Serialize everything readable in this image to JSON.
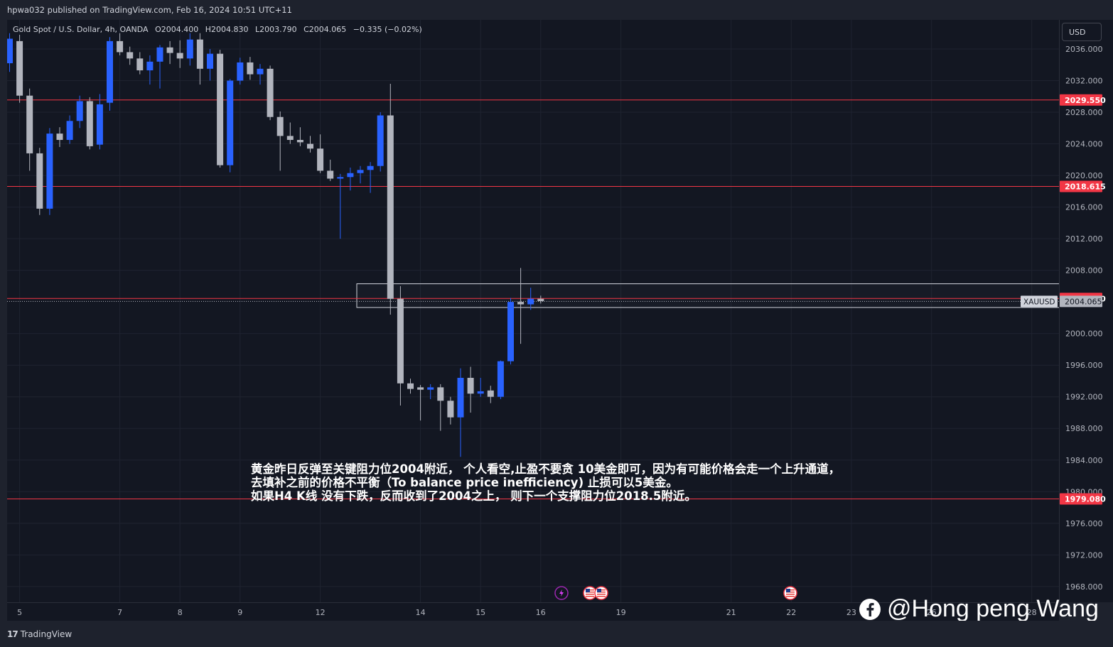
{
  "header": {
    "publisher_text": "hpwa032 published on TradingView.com, Feb 16, 2024 10:51 UTC+11"
  },
  "legend": {
    "symbol": "Gold Spot / U.S. Dollar, 4h, OANDA",
    "open": "O2004.400",
    "high": "H2004.830",
    "low": "L2003.790",
    "close": "C2004.065",
    "change": "−0.335 (−0.02%)"
  },
  "currency": "USD",
  "footer": {
    "brand": "TradingView",
    "logo_icon": "tradingview-logo-icon"
  },
  "annotation": {
    "line1": "黄金昨日反弹至关键阻力位2004附近， 个人看空,止盈不要贪 10美金即可，因为有可能价格会走一个上升通道，",
    "line2": "去填补之前的价格不平衡（To balance price inefficiency) 止损可以5美金。",
    "line3": "如果H4 K线 没有下跌，反而收到了2004之上， 则下一个支撑阻力位2018.5附近。"
  },
  "watermark": {
    "text": "@Hong peng Wang",
    "icon": "facebook-icon"
  },
  "event_icons": [
    "lightning-icon",
    "us-flag-icon",
    "us-flag-icon",
    "us-flag-icon"
  ],
  "colors": {
    "up": "#2962ff",
    "down": "#b2b5be",
    "level_line": "#f23645",
    "background": "#131722"
  },
  "chart_data": {
    "type": "candlestick",
    "symbol": "XAUUSD",
    "timeframe": "4h",
    "ylim": [
      1966,
      2038
    ],
    "y_ticks": [
      2036,
      2032,
      2028,
      2024,
      2020,
      2016,
      2012,
      2008,
      2000,
      1996,
      1992,
      1988,
      1984,
      1980,
      1976,
      1972,
      1968
    ],
    "y_tick_labels": [
      "2036.000",
      "2032.000",
      "2028.000",
      "2024.000",
      "2020.000",
      "2016.000",
      "2012.000",
      "2008.000",
      "2000.000",
      "1996.000",
      "1992.000",
      "1988.000",
      "1984.000",
      "1980.000",
      "1976.000",
      "1972.000",
      "1968.000"
    ],
    "x_labels": [
      {
        "label": "5",
        "bar": 1
      },
      {
        "label": "7",
        "bar": 11
      },
      {
        "label": "8",
        "bar": 17
      },
      {
        "label": "9",
        "bar": 23
      },
      {
        "label": "12",
        "bar": 31
      },
      {
        "label": "14",
        "bar": 41
      },
      {
        "label": "15",
        "bar": 47
      },
      {
        "label": "16",
        "bar": 53
      },
      {
        "label": "19",
        "bar": 61
      },
      {
        "label": "21",
        "bar": 72
      },
      {
        "label": "22",
        "bar": 78
      },
      {
        "label": "23",
        "bar": 84
      },
      {
        "label": "26",
        "bar": 92
      },
      {
        "label": "28",
        "bar": 102
      }
    ],
    "candles": [
      {
        "o": 2034.2,
        "h": 2038.0,
        "l": 2033.1,
        "c": 2037.3
      },
      {
        "o": 2037.0,
        "h": 2037.8,
        "l": 2029.2,
        "c": 2030.1
      },
      {
        "o": 2030.1,
        "h": 2031.0,
        "l": 2020.6,
        "c": 2022.8
      },
      {
        "o": 2022.8,
        "h": 2023.5,
        "l": 2015.0,
        "c": 2015.8
      },
      {
        "o": 2015.8,
        "h": 2026.0,
        "l": 2015.0,
        "c": 2025.3
      },
      {
        "o": 2025.3,
        "h": 2026.1,
        "l": 2023.6,
        "c": 2024.5
      },
      {
        "o": 2024.5,
        "h": 2027.6,
        "l": 2024.0,
        "c": 2026.9
      },
      {
        "o": 2026.9,
        "h": 2030.1,
        "l": 2026.0,
        "c": 2029.4
      },
      {
        "o": 2029.4,
        "h": 2029.9,
        "l": 2023.3,
        "c": 2023.7
      },
      {
        "o": 2023.9,
        "h": 2030.3,
        "l": 2023.3,
        "c": 2029.0
      },
      {
        "o": 2029.2,
        "h": 2037.5,
        "l": 2028.2,
        "c": 2037.0
      },
      {
        "o": 2037.0,
        "h": 2038.0,
        "l": 2035.2,
        "c": 2035.6
      },
      {
        "o": 2035.6,
        "h": 2036.3,
        "l": 2034.0,
        "c": 2034.8
      },
      {
        "o": 2034.8,
        "h": 2035.6,
        "l": 2032.8,
        "c": 2033.3
      },
      {
        "o": 2033.3,
        "h": 2035.2,
        "l": 2031.5,
        "c": 2034.4
      },
      {
        "o": 2034.4,
        "h": 2036.5,
        "l": 2031.0,
        "c": 2036.2
      },
      {
        "o": 2036.2,
        "h": 2037.0,
        "l": 2034.1,
        "c": 2035.5
      },
      {
        "o": 2035.5,
        "h": 2037.1,
        "l": 2033.6,
        "c": 2034.8
      },
      {
        "o": 2034.8,
        "h": 2038.0,
        "l": 2033.9,
        "c": 2037.2
      },
      {
        "o": 2037.2,
        "h": 2038.0,
        "l": 2031.5,
        "c": 2033.5
      },
      {
        "o": 2033.5,
        "h": 2036.0,
        "l": 2032.0,
        "c": 2035.4
      },
      {
        "o": 2035.4,
        "h": 2035.9,
        "l": 2021.0,
        "c": 2021.3
      },
      {
        "o": 2021.3,
        "h": 2032.2,
        "l": 2020.4,
        "c": 2032.0
      },
      {
        "o": 2032.0,
        "h": 2034.9,
        "l": 2031.5,
        "c": 2034.3
      },
      {
        "o": 2034.3,
        "h": 2035.0,
        "l": 2032.1,
        "c": 2032.8
      },
      {
        "o": 2032.8,
        "h": 2034.1,
        "l": 2031.5,
        "c": 2033.5
      },
      {
        "o": 2033.5,
        "h": 2033.9,
        "l": 2027.0,
        "c": 2027.4
      },
      {
        "o": 2027.4,
        "h": 2028.1,
        "l": 2020.6,
        "c": 2025.0
      },
      {
        "o": 2025.0,
        "h": 2026.7,
        "l": 2024.0,
        "c": 2024.5
      },
      {
        "o": 2024.5,
        "h": 2026.1,
        "l": 2023.7,
        "c": 2024.2
      },
      {
        "o": 2024.0,
        "h": 2025.0,
        "l": 2022.9,
        "c": 2023.4
      },
      {
        "o": 2023.4,
        "h": 2025.2,
        "l": 2020.3,
        "c": 2020.6
      },
      {
        "o": 2020.6,
        "h": 2022.0,
        "l": 2019.3,
        "c": 2019.6
      },
      {
        "o": 2019.6,
        "h": 2020.2,
        "l": 2012.0,
        "c": 2019.8
      },
      {
        "o": 2019.8,
        "h": 2021.0,
        "l": 2018.1,
        "c": 2020.3
      },
      {
        "o": 2020.3,
        "h": 2021.2,
        "l": 2019.0,
        "c": 2020.7
      },
      {
        "o": 2020.7,
        "h": 2021.7,
        "l": 2017.8,
        "c": 2021.2
      },
      {
        "o": 2021.2,
        "h": 2028.0,
        "l": 2020.5,
        "c": 2027.6
      },
      {
        "o": 2027.6,
        "h": 2031.6,
        "l": 2002.4,
        "c": 2004.4
      },
      {
        "o": 2004.4,
        "h": 2006.0,
        "l": 1990.9,
        "c": 1993.7
      },
      {
        "o": 1993.7,
        "h": 1994.3,
        "l": 1992.4,
        "c": 1993.0
      },
      {
        "o": 1993.2,
        "h": 1993.5,
        "l": 1989.0,
        "c": 1992.9
      },
      {
        "o": 1992.9,
        "h": 1993.6,
        "l": 1991.7,
        "c": 1993.2
      },
      {
        "o": 1993.2,
        "h": 1993.6,
        "l": 1987.7,
        "c": 1991.5
      },
      {
        "o": 1991.5,
        "h": 1992.0,
        "l": 1988.5,
        "c": 1989.4
      },
      {
        "o": 1989.4,
        "h": 1995.6,
        "l": 1984.4,
        "c": 1994.4
      },
      {
        "o": 1994.4,
        "h": 1995.8,
        "l": 1990.0,
        "c": 1992.4
      },
      {
        "o": 1992.4,
        "h": 1994.4,
        "l": 1992.0,
        "c": 1992.7
      },
      {
        "o": 1992.8,
        "h": 1993.4,
        "l": 1991.2,
        "c": 1992.0
      },
      {
        "o": 1992.0,
        "h": 1996.6,
        "l": 1991.7,
        "c": 1996.5
      },
      {
        "o": 1996.5,
        "h": 2004.5,
        "l": 1996.1,
        "c": 2004.0
      },
      {
        "o": 2004.0,
        "h": 2008.3,
        "l": 1998.7,
        "c": 2003.7
      },
      {
        "o": 2003.7,
        "h": 2005.8,
        "l": 2003.0,
        "c": 2004.4
      },
      {
        "o": 2004.4,
        "h": 2004.8,
        "l": 2003.8,
        "c": 2004.1
      }
    ],
    "horizontal_lines": [
      {
        "price": 2029.55,
        "label": "2029.550"
      },
      {
        "price": 2018.615,
        "label": "2018.615"
      },
      {
        "price": 2004.44,
        "label": "2004.440"
      },
      {
        "price": 1979.08,
        "label": "1979.080"
      }
    ],
    "current_price": {
      "price": 2004.065,
      "label": "2004.065",
      "symbol_tag": "XAUUSD"
    },
    "zone": {
      "top": 2006.3,
      "bottom": 2003.3,
      "start_bar": 35,
      "end_bar": 124
    }
  }
}
